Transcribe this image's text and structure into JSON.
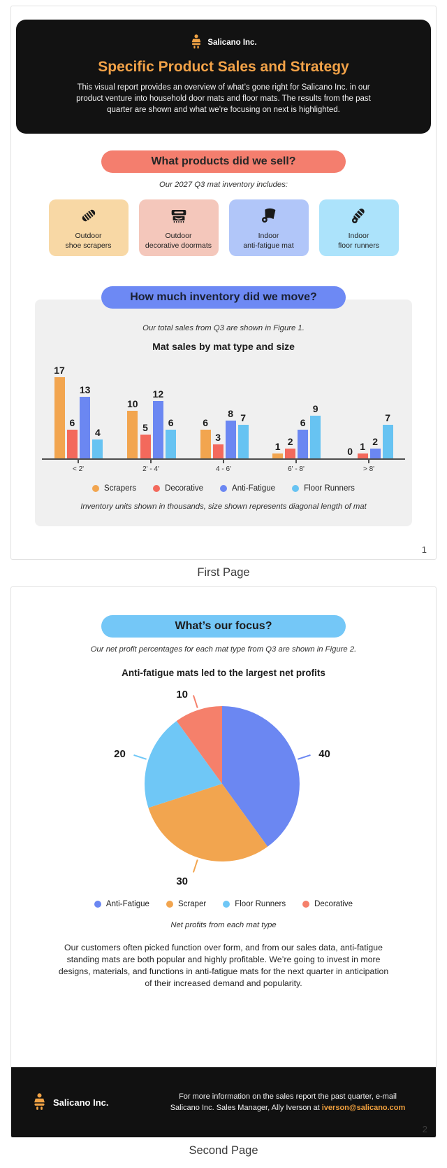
{
  "page1": {
    "header": {
      "brand": "Salicano Inc.",
      "title": "Specific Product Sales and Strategy",
      "description": "This visual report provides an overview of what’s gone right for Salicano Inc. in our product venture into household door mats and floor mats. The results from the past quarter are shown and what we’re focusing on next is highlighted."
    },
    "products": {
      "banner": "What products did we sell?",
      "subtitle": "Our 2027 Q3 mat inventory includes:",
      "cards": [
        {
          "label": "Outdoor\nshoe scrapers",
          "bg": "#f8d8a5",
          "icon": "shoe-scraper-brush-icon"
        },
        {
          "label": "Outdoor\ndecorative doormats",
          "bg": "#f4c7bb",
          "icon": "decorative-doormat-icon"
        },
        {
          "label": "Indoor\nanti-fatigue mat",
          "bg": "#b1c6f9",
          "icon": "anti-fatigue-mat-icon"
        },
        {
          "label": "Indoor\nfloor runners",
          "bg": "#ace3fb",
          "icon": "floor-runner-roll-icon"
        }
      ]
    },
    "inventory": {
      "banner": "How much inventory did we move?",
      "subtitle": "Our total sales from Q3 are shown in Figure 1."
    },
    "page_number": "1",
    "page_label": "First Page"
  },
  "page2": {
    "banner": "What’s our focus?",
    "subtitle": "Our net profit percentages for each mat type from Q3 are shown in Figure 2.",
    "body_text": "Our customers often picked function over form, and from our sales data, anti-fatigue standing mats are both popular and highly profitable. We’re going to invest in more designs, materials, and functions in anti-fatigue mats for the next quarter in anticipation of their increased demand and popularity.",
    "footer": {
      "brand": "Salicano Inc.",
      "contact_line1": "For more information on the sales report the past quarter, e-mail",
      "contact_line2_prefix": "Salicano Inc. Sales Manager, Ally Iverson at ",
      "contact_email": "iverson@salicano.com"
    },
    "page_number": "2",
    "page_label": "Second Page"
  },
  "chart_data": [
    {
      "type": "bar",
      "title": "Mat sales by mat type and size",
      "note": "Inventory units shown in thousands, size shown represents diagonal length of mat",
      "categories": [
        "< 2'",
        "2' - 4'",
        "4 - 6'",
        "6' - 8'",
        "> 8'"
      ],
      "series": [
        {
          "name": "Scrapers",
          "color": "#f2a54f",
          "values": [
            17,
            10,
            6,
            1,
            0
          ]
        },
        {
          "name": "Decorative",
          "color": "#f3695c",
          "values": [
            6,
            5,
            3,
            2,
            1
          ]
        },
        {
          "name": "Anti-Fatigue",
          "color": "#6b87f2",
          "values": [
            13,
            12,
            8,
            6,
            2
          ]
        },
        {
          "name": "Floor Runners",
          "color": "#67c3f2",
          "values": [
            4,
            6,
            7,
            9,
            7
          ]
        }
      ],
      "ylim": [
        0,
        18
      ],
      "value_labels": true,
      "grid": false,
      "legend_position": "bottom"
    },
    {
      "type": "pie",
      "title": "Anti-fatigue mats led to the largest net profits",
      "caption": "Net profits from each mat type",
      "labels": [
        "Anti-Fatigue",
        "Scraper",
        "Floor Runners",
        "Decorative"
      ],
      "values": [
        40,
        30,
        20,
        10
      ],
      "colors": [
        "#6b87f2",
        "#f2a54f",
        "#6fc7f6",
        "#f5806b"
      ],
      "start_angle_deg": 0,
      "direction": "clockwise",
      "legend_position": "bottom"
    }
  ],
  "colors": {
    "header_bg": "#121212",
    "accent_orange": "#f2a248",
    "banner_red": "#f47e6e",
    "banner_blue": "#6d89f4",
    "banner_cyan": "#74c7f7",
    "panel_gray": "#f0f0f0",
    "email_orange": "#f0a03e"
  }
}
